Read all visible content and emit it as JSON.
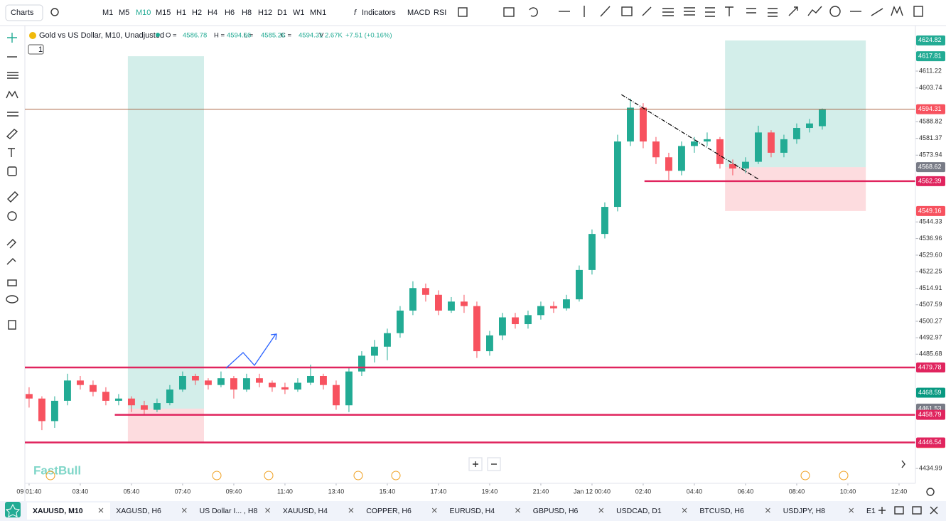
{
  "toolbar": {
    "charts": "Charts",
    "timeframes": [
      "M1",
      "M5",
      "M10",
      "M15",
      "H1",
      "H2",
      "H4",
      "H6",
      "H8",
      "H12",
      "D1",
      "W1",
      "MN1"
    ],
    "active_timeframe": 2,
    "indicators": "Indicators",
    "studies": [
      "MACD",
      "RSI"
    ]
  },
  "legend": {
    "title": "Gold vs US Dollar, M10, Unadjusted",
    "labels": [
      "O =",
      "H =",
      "L =",
      "C =",
      "V"
    ],
    "volume": "2.67K",
    "change": "+7.51 (+0.16%)",
    "badge": "1"
  },
  "watermark": "FastBull",
  "chart_data": {
    "type": "candlestick",
    "up_color": "#22ab94",
    "down_color": "#f7525f",
    "ylim": [
      4428.4,
      4631.4
    ],
    "yticks": [
      4611.22,
      4603.74,
      4588.82,
      4581.37,
      4573.94,
      4544.33,
      4536.96,
      {
        "value": 4529.6,
        "label": "4529.60"
      },
      4522.25,
      4514.91,
      4507.59,
      4500.27,
      4492.97,
      4485.68,
      4434.99
    ],
    "xlim": [
      -0.33,
      69.28
    ],
    "xticks": [
      {
        "value": 0,
        "label": "09 01:40"
      },
      {
        "value": 4,
        "label": "03:40"
      },
      {
        "value": 8,
        "label": "05:40"
      },
      {
        "value": 12,
        "label": "07:40"
      },
      {
        "value": 16,
        "label": "09:40"
      },
      {
        "value": 20,
        "label": "11:40"
      },
      {
        "value": 24,
        "label": "13:40"
      },
      {
        "value": 28,
        "label": "15:40"
      },
      {
        "value": 32,
        "label": "17:40"
      },
      {
        "value": 36,
        "label": "19:40"
      },
      {
        "value": 40,
        "label": "21:40"
      },
      {
        "value": 44,
        "label": "Jan 12 00:40"
      },
      {
        "value": 48,
        "label": "02:40"
      },
      {
        "value": 52,
        "label": "04:40"
      },
      {
        "value": 56,
        "label": "06:40"
      },
      {
        "value": 60,
        "label": "08:40"
      },
      {
        "value": 64,
        "label": "10:40"
      },
      {
        "value": 68,
        "label": "12:40"
      }
    ],
    "candles": [
      [
        4468,
        4471,
        4462,
        4466
      ],
      [
        4466,
        4467,
        4452,
        4456
      ],
      [
        4456,
        4467,
        4453,
        4465
      ],
      [
        4465,
        4477,
        4463,
        4474
      ],
      [
        4474,
        4476,
        4470,
        4472
      ],
      [
        4472,
        4474,
        4467,
        4469
      ],
      [
        4469,
        4471,
        4463,
        4465
      ],
      [
        4465,
        4468,
        4463,
        4466
      ],
      [
        4466,
        4467,
        4460,
        4463
      ],
      [
        4463,
        4465,
        4459,
        4461
      ],
      [
        4461,
        4466,
        4460,
        4464
      ],
      [
        4464,
        4472,
        4463,
        4470
      ],
      [
        4470,
        4478,
        4469,
        4476
      ],
      [
        4476,
        4477,
        4472,
        4474
      ],
      [
        4474,
        4475,
        4470,
        4472
      ],
      [
        4472,
        4478,
        4471,
        4475
      ],
      [
        4475,
        4476,
        4466,
        4470
      ],
      [
        4470,
        4477,
        4469,
        4475
      ],
      [
        4475,
        4477,
        4471,
        4473
      ],
      [
        4473,
        4474,
        4469,
        4471
      ],
      [
        4471,
        4473,
        4468,
        4470
      ],
      [
        4470,
        4475,
        4469,
        4473
      ],
      [
        4473,
        4481,
        4472,
        4476
      ],
      [
        4476,
        4477,
        4470,
        4472
      ],
      [
        4472,
        4474,
        4461,
        4463
      ],
      [
        4463,
        4480,
        4460,
        4478
      ],
      [
        4478,
        4487,
        4476,
        4485
      ],
      [
        4485,
        4492,
        4482,
        4489
      ],
      [
        4489,
        4497,
        4483,
        4495
      ],
      [
        4495,
        4507,
        4493,
        4505
      ],
      [
        4505,
        4518,
        4503,
        4515
      ],
      [
        4515,
        4517,
        4509,
        4512
      ],
      [
        4512,
        4514,
        4503,
        4505
      ],
      [
        4505,
        4511,
        4504,
        4509
      ],
      [
        4509,
        4512,
        4504,
        4507
      ],
      [
        4507,
        4509,
        4484,
        4487
      ],
      [
        4487,
        4496,
        4485,
        4494
      ],
      [
        4494,
        4504,
        4492,
        4502
      ],
      [
        4502,
        4504,
        4497,
        4499
      ],
      [
        4499,
        4505,
        4497,
        4503
      ],
      [
        4503,
        4509,
        4501,
        4507
      ],
      [
        4507,
        4509,
        4504,
        4506
      ],
      [
        4506,
        4512,
        4505,
        4510
      ],
      [
        4510,
        4525,
        4509,
        4523
      ],
      [
        4523,
        4541,
        4521,
        4539
      ],
      [
        4539,
        4553,
        4537,
        4551
      ],
      [
        4551,
        4583,
        4549,
        4580
      ],
      [
        4580,
        4599,
        4578,
        4595
      ],
      [
        4595,
        4597,
        4577,
        4580
      ],
      [
        4580,
        4582,
        4570,
        4573
      ],
      [
        4573,
        4575,
        4563,
        4567
      ],
      [
        4567,
        4580,
        4565,
        4578
      ],
      [
        4578,
        4582,
        4575,
        4580
      ],
      [
        4580,
        4584,
        4578,
        4581
      ],
      [
        4581,
        4582,
        4568,
        4570
      ],
      [
        4570,
        4572,
        4565,
        4568
      ],
      [
        4568,
        4573,
        4566,
        4571
      ],
      [
        4571,
        4587,
        4570,
        4584
      ],
      [
        4584,
        4585,
        4573,
        4575
      ],
      [
        4575,
        4583,
        4573,
        4581
      ],
      [
        4581,
        4588,
        4579,
        4586
      ],
      [
        4586,
        4590,
        4584,
        4588
      ],
      [
        4586.78,
        4594.66,
        4585.26,
        4594.31
      ]
    ],
    "current_price_color": "#f7525f",
    "positions": [
      {
        "from": 7.72,
        "to": 13.67,
        "target": 4617.81,
        "entry": 4461.53,
        "stop": 4446.3
      },
      {
        "from": 54.4,
        "to": 65.4,
        "target": 4624.82,
        "entry": 4568.62,
        "stop": 4549.16
      }
    ],
    "hlines": [
      {
        "value": 4562.39,
        "from": 48.1,
        "color": "#e0245e"
      },
      {
        "value": 4479.78,
        "from": -0.33,
        "color": "#e0245e"
      },
      {
        "value": 4458.79,
        "from": 6.7,
        "color": "#e0245e"
      },
      {
        "value": 4446.54,
        "from": -0.33,
        "color": "#e0245e"
      }
    ],
    "tags": [
      {
        "value": 4468.59,
        "color": "#089981"
      }
    ],
    "trendline": {
      "x": [
        46.3,
        57
      ],
      "y": [
        4600.8,
        4563.3
      ]
    }
  },
  "tabs": [
    "XAUUSD, M10",
    "XAGUSD, H6",
    "US Dollar I... , H8",
    "XAUUSD, H4",
    "COPPER, H6",
    "EURUSD, H4",
    "GBPUSD, H6",
    "USDCAD, D1",
    "BTCUSD, H6",
    "USDJPY, H8",
    "E1"
  ]
}
